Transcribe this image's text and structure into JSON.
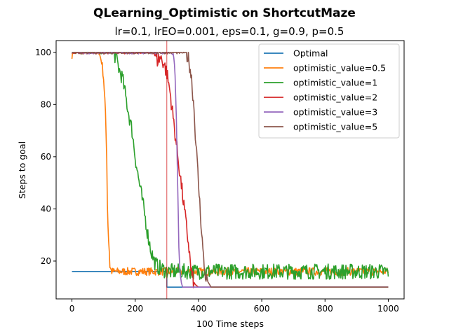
{
  "chart_data": {
    "type": "line",
    "title": "QLearning_Optimistic on ShortcutMaze",
    "subtitle": "lr=0.1, lrEO=0.001, eps=0.1, g=0.9, p=0.5",
    "xlabel": "100 Time steps",
    "ylabel": "Steps to goal",
    "xlim": [
      -50,
      1050
    ],
    "ylim": [
      5.5,
      104.5
    ],
    "xticks": [
      0,
      200,
      400,
      600,
      800,
      1000
    ],
    "yticks": [
      20,
      40,
      60,
      80,
      100
    ],
    "grid": false,
    "legend_position": "top-right",
    "vline": {
      "x": 300,
      "color": "#d62728"
    },
    "series": [
      {
        "name": "Optimal",
        "color": "#1f77b4",
        "noise": 0,
        "points": [
          [
            0,
            16
          ],
          [
            300,
            16
          ],
          [
            300,
            10
          ],
          [
            1000,
            10
          ]
        ]
      },
      {
        "name": "optimistic_value=0.5",
        "color": "#ff7f0e",
        "noise": 1.5,
        "points": [
          [
            0,
            99
          ],
          [
            5,
            100
          ],
          [
            85,
            100
          ],
          [
            90,
            98
          ],
          [
            95,
            96
          ],
          [
            100,
            90
          ],
          [
            105,
            80
          ],
          [
            110,
            60
          ],
          [
            112,
            42
          ],
          [
            115,
            30
          ],
          [
            118,
            24
          ],
          [
            120,
            18
          ],
          [
            125,
            16
          ],
          [
            1000,
            16
          ]
        ]
      },
      {
        "name": "optimistic_value=1",
        "color": "#2ca02c",
        "noise": 3,
        "points": [
          [
            0,
            100
          ],
          [
            130,
            100
          ],
          [
            140,
            98
          ],
          [
            150,
            93
          ],
          [
            160,
            90
          ],
          [
            170,
            83
          ],
          [
            180,
            76
          ],
          [
            190,
            70
          ],
          [
            200,
            60
          ],
          [
            210,
            52
          ],
          [
            220,
            45
          ],
          [
            230,
            38
          ],
          [
            240,
            30
          ],
          [
            250,
            24
          ],
          [
            260,
            20
          ],
          [
            270,
            18
          ],
          [
            285,
            17
          ],
          [
            300,
            16
          ],
          [
            1000,
            16
          ]
        ]
      },
      {
        "name": "optimistic_value=2",
        "color": "#d62728",
        "noise": 3,
        "points": [
          [
            0,
            100
          ],
          [
            260,
            100
          ],
          [
            270,
            97
          ],
          [
            280,
            98
          ],
          [
            290,
            96
          ],
          [
            300,
            92
          ],
          [
            310,
            85
          ],
          [
            320,
            75
          ],
          [
            330,
            65
          ],
          [
            340,
            55
          ],
          [
            350,
            45
          ],
          [
            360,
            35
          ],
          [
            370,
            25
          ],
          [
            375,
            18
          ],
          [
            380,
            14
          ],
          [
            385,
            12
          ],
          [
            390,
            11
          ],
          [
            400,
            10
          ],
          [
            1000,
            10
          ]
        ]
      },
      {
        "name": "optimistic_value=3",
        "color": "#9467bd",
        "noise": 0.5,
        "points": [
          [
            0,
            100
          ],
          [
            315,
            100
          ],
          [
            320,
            99
          ],
          [
            325,
            95
          ],
          [
            330,
            75
          ],
          [
            335,
            45
          ],
          [
            338,
            25
          ],
          [
            342,
            15
          ],
          [
            345,
            12
          ],
          [
            350,
            10
          ],
          [
            1000,
            10
          ]
        ]
      },
      {
        "name": "optimistic_value=5",
        "color": "#8c564b",
        "noise": 3,
        "points": [
          [
            0,
            100
          ],
          [
            360,
            100
          ],
          [
            370,
            97
          ],
          [
            378,
            90
          ],
          [
            385,
            80
          ],
          [
            392,
            65
          ],
          [
            400,
            50
          ],
          [
            405,
            40
          ],
          [
            410,
            32
          ],
          [
            415,
            22
          ],
          [
            420,
            16
          ],
          [
            425,
            13
          ],
          [
            430,
            12
          ],
          [
            440,
            10
          ],
          [
            1000,
            10
          ]
        ]
      }
    ]
  }
}
